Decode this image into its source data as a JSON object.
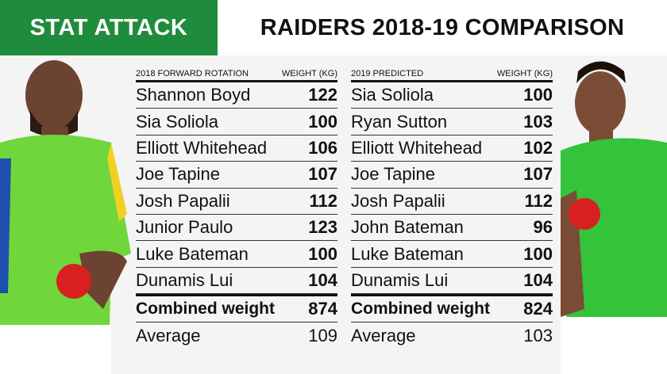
{
  "header": {
    "badge": "STAT ATTACK",
    "title": "RAIDERS 2018-19 COMPARISON"
  },
  "tables": [
    {
      "col_name": "2018 FORWARD ROTATION",
      "col_weight": "WEIGHT (KG)",
      "rows": [
        [
          "Shannon Boyd",
          "122"
        ],
        [
          "Sia Soliola",
          "100"
        ],
        [
          "Elliott Whitehead",
          "106"
        ],
        [
          "Joe Tapine",
          "107"
        ],
        [
          "Josh Papalii",
          "112"
        ],
        [
          "Junior Paulo",
          "123"
        ],
        [
          "Luke Bateman",
          "100"
        ],
        [
          "Dunamis Lui",
          "104"
        ]
      ],
      "combined_label": "Combined weight",
      "combined": "874",
      "average_label": "Average",
      "average": "109"
    },
    {
      "col_name": "2019 PREDICTED",
      "col_weight": "WEIGHT (KG)",
      "rows": [
        [
          "Sia Soliola",
          "100"
        ],
        [
          "Ryan Sutton",
          "103"
        ],
        [
          "Elliott Whitehead",
          "102"
        ],
        [
          "Joe Tapine",
          "107"
        ],
        [
          "Josh Papalii",
          "112"
        ],
        [
          "John Bateman",
          "96"
        ],
        [
          "Luke Bateman",
          "100"
        ],
        [
          "Dunamis Lui",
          "104"
        ]
      ],
      "combined_label": "Combined weight",
      "combined": "824",
      "average_label": "Average",
      "average": "103"
    }
  ],
  "colors": {
    "brand_green": "#1f8b3c",
    "jersey_green": "#6fd63c"
  }
}
